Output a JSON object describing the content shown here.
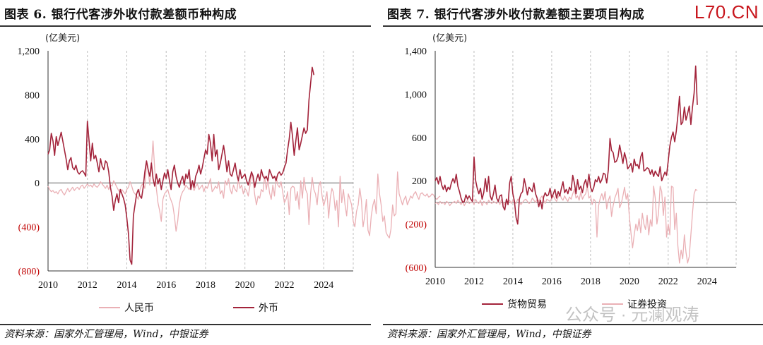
{
  "watermarks": {
    "logo": "L70.CN",
    "wechat": "公众号 · 元澜观涛"
  },
  "colors": {
    "dark": "#A3243B",
    "light": "#EAB0B5",
    "grid": "#BFBFBF",
    "neg": "#C00000"
  },
  "charts": [
    {
      "title": "图表 6. 银行代客涉外收付款差额币种构成",
      "source": "资料来源：国家外汇管理局，Wind，中银证券",
      "chart_data": {
        "type": "line",
        "unit_label": "(亿美元)",
        "x_start": "2010-01",
        "x_end": "2025-07",
        "x_ticks": [
          "2010",
          "2012",
          "2014",
          "2016",
          "2018",
          "2020",
          "2022",
          "2024"
        ],
        "ylim": [
          -800,
          1200
        ],
        "y_ticks": [
          -800,
          -400,
          0,
          400,
          800,
          1200
        ],
        "y_tick_labels": [
          "(800)",
          "(400)",
          "0",
          "400",
          "800",
          "1,200"
        ],
        "series": [
          {
            "name": "人民币",
            "color": "light",
            "values": [
              -30,
              -60,
              -80,
              -70,
              -90,
              -80,
              -100,
              -70,
              -60,
              -90,
              -110,
              -80,
              -50,
              -80,
              -60,
              -40,
              -70,
              -50,
              -40,
              -60,
              -30,
              -20,
              -50,
              -30,
              -10,
              -30,
              -20,
              -40,
              -10,
              -30,
              -40,
              -20,
              10,
              -10,
              -30,
              -50,
              -20,
              -60,
              -20,
              -30,
              20,
              -10,
              -40,
              -70,
              -90,
              -60,
              -80,
              -100,
              -60,
              -40,
              10,
              -30,
              -80,
              -100,
              -120,
              -150,
              -60,
              -20,
              -10,
              -50,
              180,
              120,
              -20,
              150,
              380,
              120,
              -50,
              -180,
              -250,
              -350,
              -150,
              -100,
              -80,
              -60,
              -120,
              -160,
              -200,
              -300,
              -440,
              -350,
              -200,
              -120,
              -80,
              -60,
              -20,
              -40,
              -60,
              -30,
              -10,
              -70,
              -30,
              -10,
              -60,
              -40,
              -20,
              -80,
              -30,
              -50,
              -10,
              40,
              -80,
              -60,
              -30,
              -50,
              10,
              -100,
              -70,
              -140,
              20,
              -20,
              40,
              -60,
              -100,
              -20,
              -60,
              -80,
              30,
              -50,
              -20,
              -100,
              -50,
              -70,
              -120,
              -30,
              90,
              20,
              -110,
              -200,
              -120,
              -140,
              -60,
              -80,
              60,
              -60,
              30,
              -90,
              -150,
              -20,
              -120,
              60,
              -20,
              -40,
              10,
              -80,
              -180,
              -150,
              -80,
              -290,
              -50,
              -30,
              -40,
              -160,
              -80,
              -240,
              20,
              -140,
              50,
              -60,
              -100,
              -380,
              -100,
              50,
              -60,
              -100,
              -200,
              -30,
              10,
              -120,
              -210,
              -150,
              -80,
              -320,
              -140,
              -50,
              -90,
              -250,
              -160,
              -400,
              60,
              -180,
              -60,
              -200,
              -300,
              -100,
              -150,
              -200,
              -350,
              -400,
              -260,
              -200,
              -50,
              -160,
              -400,
              -300,
              -150,
              -430,
              -480,
              -300,
              -200,
              -150,
              -280,
              80,
              -100,
              -200,
              -350,
              -300,
              -450,
              -480,
              -500,
              -420,
              -200,
              -300,
              -280,
              100,
              -100,
              -150,
              -200,
              -150,
              -120,
              -200,
              -160,
              -120,
              -140,
              -100,
              -80,
              -120,
              -150,
              -100,
              -90,
              -110,
              -120,
              -100,
              -130,
              -120,
              -100,
              -110,
              -140,
              -150,
              -130,
              -120
            ]
          },
          {
            "name": "外币",
            "color": "dark",
            "values": [
              260,
              300,
              450,
              380,
              250,
              420,
              340,
              400,
              460,
              380,
              300,
              220,
              120,
              200,
              230,
              140,
              120,
              160,
              100,
              80,
              100,
              110,
              90,
              60,
              560,
              380,
              200,
              360,
              220,
              250,
              180,
              100,
              220,
              150,
              120,
              200,
              180,
              100,
              -40,
              -120,
              -250,
              -160,
              -100,
              -180,
              -60,
              -100,
              -140,
              -200,
              -320,
              -460,
              -700,
              -740,
              -300,
              -200,
              -100,
              -60,
              -120,
              -140,
              -40,
              100,
              200,
              120,
              60,
              180,
              40,
              -30,
              80,
              -10,
              40,
              -60,
              20,
              90,
              40,
              120,
              20,
              -60,
              100,
              160,
              60,
              0,
              -40,
              20,
              60,
              -20,
              80,
              40,
              120,
              -60,
              20,
              -40,
              60,
              100,
              160,
              80,
              140,
              220,
              300,
              260,
              440,
              360,
              200,
              440,
              240,
              300,
              120,
              180,
              260,
              340,
              240,
              100,
              200,
              80,
              60,
              120,
              180,
              80,
              20,
              120,
              40,
              60,
              80,
              20,
              -20,
              40,
              100,
              60,
              -40,
              30,
              80,
              20,
              120,
              60,
              40,
              60,
              20,
              120,
              80,
              40,
              60,
              20,
              80,
              100,
              70,
              90,
              140,
              180,
              300,
              400,
              550,
              420,
              250,
              380,
              500,
              300,
              360,
              430,
              500,
              450,
              480,
              750,
              900,
              1050,
              980
            ]
          }
        ]
      }
    },
    {
      "title": "图表 7. 银行代客涉外收付款差额主要项目构成",
      "source": "资料来源：国家外汇管理局，Wind，中银证券",
      "chart_data": {
        "type": "line",
        "unit_label": "(亿美元)",
        "x_start": "2010-01",
        "x_end": "2025-07",
        "x_ticks": [
          "2010",
          "2012",
          "2014",
          "2016",
          "2018",
          "2020",
          "2022",
          "2024"
        ],
        "ylim": [
          -600,
          1400
        ],
        "y_ticks": [
          -600,
          -200,
          200,
          600,
          1000,
          1400
        ],
        "y_tick_labels": [
          "(600)",
          "(200)",
          "200",
          "600",
          "1,000",
          "1,400"
        ],
        "series": [
          {
            "name": "货物贸易",
            "color": "dark",
            "values": [
              200,
              230,
              170,
              240,
              160,
              120,
              160,
              100,
              140,
              120,
              180,
              220,
              180,
              260,
              150,
              100,
              40,
              0,
              10,
              70,
              30,
              60,
              30,
              10,
              420,
              200,
              130,
              80,
              130,
              30,
              90,
              220,
              100,
              240,
              60,
              20,
              80,
              160,
              40,
              10,
              60,
              70,
              -40,
              -70,
              30,
              -20,
              180,
              240,
              80,
              10,
              -140,
              -200,
              30,
              80,
              100,
              220,
              150,
              70,
              140,
              120,
              100,
              180,
              80,
              40,
              -40,
              20,
              -60,
              50,
              90,
              60,
              70,
              130,
              40,
              80,
              120,
              40,
              100,
              60,
              130,
              190,
              90,
              120,
              80,
              140,
              110,
              250,
              180,
              80,
              210,
              120,
              150,
              90,
              170,
              210,
              140,
              260,
              140,
              100,
              140,
              210,
              190,
              240,
              180,
              210,
              270,
              260,
              180,
              300,
              590,
              480,
              460,
              370,
              380,
              420,
              530,
              450,
              360,
              460,
              400,
              310,
              330,
              360,
              280,
              400,
              340,
              350,
              310,
              420,
              460,
              290,
              300,
              320,
              310,
              260,
              300,
              240,
              290,
              260,
              240,
              330,
              200,
              240,
              280,
              250,
              380,
              520,
              600,
              650,
              560,
              660,
              800,
              980,
              720,
              740,
              880,
              760,
              820,
              890,
              720,
              880,
              1010,
              1260,
              900
            ]
          },
          {
            "name": "证券投资",
            "color": "light",
            "values": [
              -10,
              0,
              -20,
              10,
              -10,
              0,
              -20,
              10,
              0,
              -30,
              -10,
              0,
              10,
              -10,
              20,
              0,
              -20,
              10,
              -30,
              0,
              20,
              -10,
              0,
              10,
              -20,
              30,
              0,
              -10,
              20,
              -30,
              10,
              0,
              -20,
              20,
              0,
              -10,
              10,
              0,
              -10,
              20,
              -20,
              30,
              0,
              -20,
              10,
              0,
              20,
              -10,
              20,
              0,
              -10,
              30,
              10,
              -20,
              0,
              20,
              30,
              10,
              -10,
              0,
              40,
              20,
              0,
              30,
              10,
              40,
              60,
              20,
              -10,
              30,
              20,
              10,
              40,
              60,
              30,
              10,
              50,
              80,
              40,
              20,
              60,
              30,
              10,
              50,
              30,
              80,
              120,
              40,
              60,
              20,
              100,
              30,
              60,
              80,
              150,
              40,
              60,
              -20,
              30,
              10,
              -320,
              -30,
              40,
              80,
              20,
              100,
              -60,
              20,
              60,
              -130,
              -30,
              40,
              80,
              130,
              -50,
              -10,
              60,
              140,
              30,
              80,
              -130,
              -280,
              -420,
              -300,
              -200,
              -260,
              -150,
              -280,
              -100,
              -200,
              -250,
              -120,
              -300,
              -160,
              -220,
              150,
              40,
              -200,
              -100,
              150,
              100,
              -120,
              50,
              -320,
              -200,
              -300,
              150,
              140,
              -250,
              -100,
              -400,
              -560,
              -440,
              -520,
              -300,
              -460,
              -560,
              -500,
              -300,
              -100,
              80,
              120,
              110
            ]
          }
        ]
      }
    }
  ]
}
